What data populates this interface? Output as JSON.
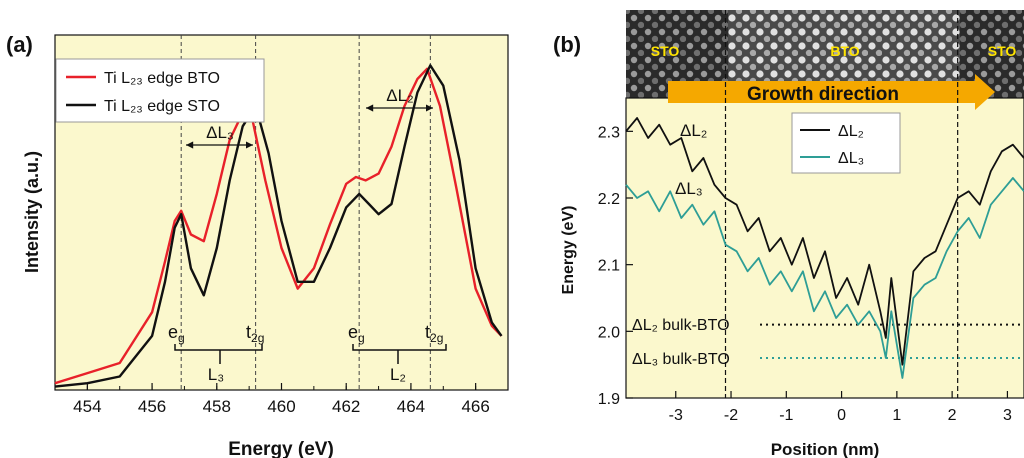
{
  "colors": {
    "panel_bg": "#fbf8cd",
    "bto": "#e8212a",
    "sto": "#111111",
    "dl3": "#2e9e96",
    "arrow": "#f5a800",
    "stem_label": "#ffe400"
  },
  "chart_data": [
    {
      "type": "line",
      "panel_label": "(a)",
      "xlabel": "Energy (eV)",
      "ylabel": "Intensity (a.u.)",
      "xlim": [
        453,
        467
      ],
      "ylim": [
        0,
        1.05
      ],
      "xticks": [
        "454",
        "456",
        "458",
        "460",
        "462",
        "464",
        "466"
      ],
      "grid": false,
      "legend_position": "top-left",
      "series": [
        {
          "name": "Ti L₂₃ edge BTO",
          "color": "#e8212a",
          "x": [
            453,
            454,
            455,
            456,
            456.4,
            456.7,
            456.9,
            457.2,
            457.6,
            458,
            458.4,
            458.8,
            459.1,
            459.5,
            460,
            460.5,
            461,
            461.5,
            462,
            462.3,
            462.6,
            463,
            463.4,
            463.8,
            464.2,
            464.5,
            464.9,
            465.4,
            466,
            466.5,
            466.8
          ],
          "y": [
            0.02,
            0.05,
            0.08,
            0.23,
            0.38,
            0.5,
            0.53,
            0.46,
            0.44,
            0.58,
            0.74,
            0.82,
            0.8,
            0.62,
            0.42,
            0.3,
            0.36,
            0.49,
            0.61,
            0.63,
            0.62,
            0.64,
            0.72,
            0.84,
            0.92,
            0.95,
            0.84,
            0.6,
            0.3,
            0.19,
            0.16
          ]
        },
        {
          "name": "Ti L₂₃ edge STO",
          "color": "#111111",
          "x": [
            453,
            454,
            455,
            456,
            456.4,
            456.7,
            456.9,
            457.2,
            457.6,
            458,
            458.4,
            458.8,
            459.2,
            459.6,
            460,
            460.5,
            461,
            461.5,
            462,
            462.4,
            462.7,
            463,
            463.4,
            463.8,
            464.2,
            464.6,
            465,
            465.5,
            466,
            466.5,
            466.8
          ],
          "y": [
            0.01,
            0.02,
            0.04,
            0.16,
            0.32,
            0.48,
            0.52,
            0.36,
            0.28,
            0.42,
            0.62,
            0.78,
            0.84,
            0.7,
            0.5,
            0.32,
            0.32,
            0.42,
            0.54,
            0.58,
            0.55,
            0.52,
            0.55,
            0.72,
            0.88,
            0.96,
            0.9,
            0.68,
            0.36,
            0.2,
            0.16
          ]
        }
      ],
      "annotations": {
        "dl3": "ΔL₃",
        "dl2": "ΔL₂",
        "eg": "e_g",
        "t2g": "t_2g",
        "l3": "L₃",
        "l2": "L₂",
        "dashed_lines_x": [
          456.9,
          459.2,
          462.4,
          464.6
        ]
      }
    },
    {
      "type": "line",
      "panel_label": "(b)",
      "xlabel": "Position (nm)",
      "ylabel": "Energy (eV)",
      "xlim": [
        -3.9,
        3.3
      ],
      "ylim": [
        1.9,
        2.35
      ],
      "xticks": [
        "-3",
        "-2",
        "-1",
        "0",
        "1",
        "2",
        "3"
      ],
      "yticks": [
        "1.9",
        "2.0",
        "2.1",
        "2.2",
        "2.3"
      ],
      "grid": false,
      "legend_position": "top-right",
      "series": [
        {
          "name": "ΔL₂",
          "color": "#111111",
          "x": [
            -3.9,
            -3.7,
            -3.5,
            -3.3,
            -3.1,
            -2.9,
            -2.7,
            -2.5,
            -2.3,
            -2.1,
            -1.9,
            -1.7,
            -1.5,
            -1.3,
            -1.1,
            -0.9,
            -0.7,
            -0.5,
            -0.3,
            -0.1,
            0.1,
            0.3,
            0.5,
            0.7,
            0.8,
            0.9,
            1.1,
            1.3,
            1.5,
            1.7,
            1.9,
            2.1,
            2.3,
            2.5,
            2.7,
            2.9,
            3.1,
            3.3
          ],
          "y": [
            2.3,
            2.32,
            2.29,
            2.31,
            2.28,
            2.29,
            2.24,
            2.26,
            2.22,
            2.2,
            2.19,
            2.15,
            2.17,
            2.12,
            2.14,
            2.1,
            2.14,
            2.08,
            2.12,
            2.05,
            2.08,
            2.04,
            2.1,
            2.03,
            1.99,
            2.08,
            1.95,
            2.09,
            2.11,
            2.12,
            2.16,
            2.2,
            2.21,
            2.19,
            2.24,
            2.27,
            2.28,
            2.26
          ]
        },
        {
          "name": "ΔL₃",
          "color": "#2e9e96",
          "x": [
            -3.9,
            -3.7,
            -3.5,
            -3.3,
            -3.1,
            -2.9,
            -2.7,
            -2.5,
            -2.3,
            -2.1,
            -1.9,
            -1.7,
            -1.5,
            -1.3,
            -1.1,
            -0.9,
            -0.7,
            -0.5,
            -0.3,
            -0.1,
            0.1,
            0.3,
            0.5,
            0.7,
            0.8,
            0.9,
            1.1,
            1.3,
            1.5,
            1.7,
            1.9,
            2.1,
            2.3,
            2.5,
            2.7,
            2.9,
            3.1,
            3.3
          ],
          "y": [
            2.22,
            2.2,
            2.21,
            2.18,
            2.21,
            2.17,
            2.19,
            2.16,
            2.18,
            2.13,
            2.12,
            2.09,
            2.11,
            2.07,
            2.09,
            2.06,
            2.09,
            2.03,
            2.06,
            2.02,
            2.04,
            2.01,
            2.03,
            2.0,
            1.96,
            2.03,
            1.93,
            2.05,
            2.07,
            2.08,
            2.12,
            2.15,
            2.17,
            2.14,
            2.19,
            2.21,
            2.23,
            2.21
          ]
        }
      ],
      "reference_lines": [
        {
          "label": "ΔL₂ bulk-BTO",
          "y": 2.01,
          "color": "#111111"
        },
        {
          "label": "ΔL₃ bulk-BTO",
          "y": 1.96,
          "color": "#2e9e96"
        }
      ],
      "interface_lines_x": [
        -2.1,
        2.1
      ],
      "curve_labels": {
        "dl2": "ΔL₂",
        "dl3": "ΔL₃"
      },
      "stem_image": {
        "labels": [
          "STO",
          "BTO",
          "STO"
        ],
        "arrow_label": "Growth direction"
      }
    }
  ]
}
